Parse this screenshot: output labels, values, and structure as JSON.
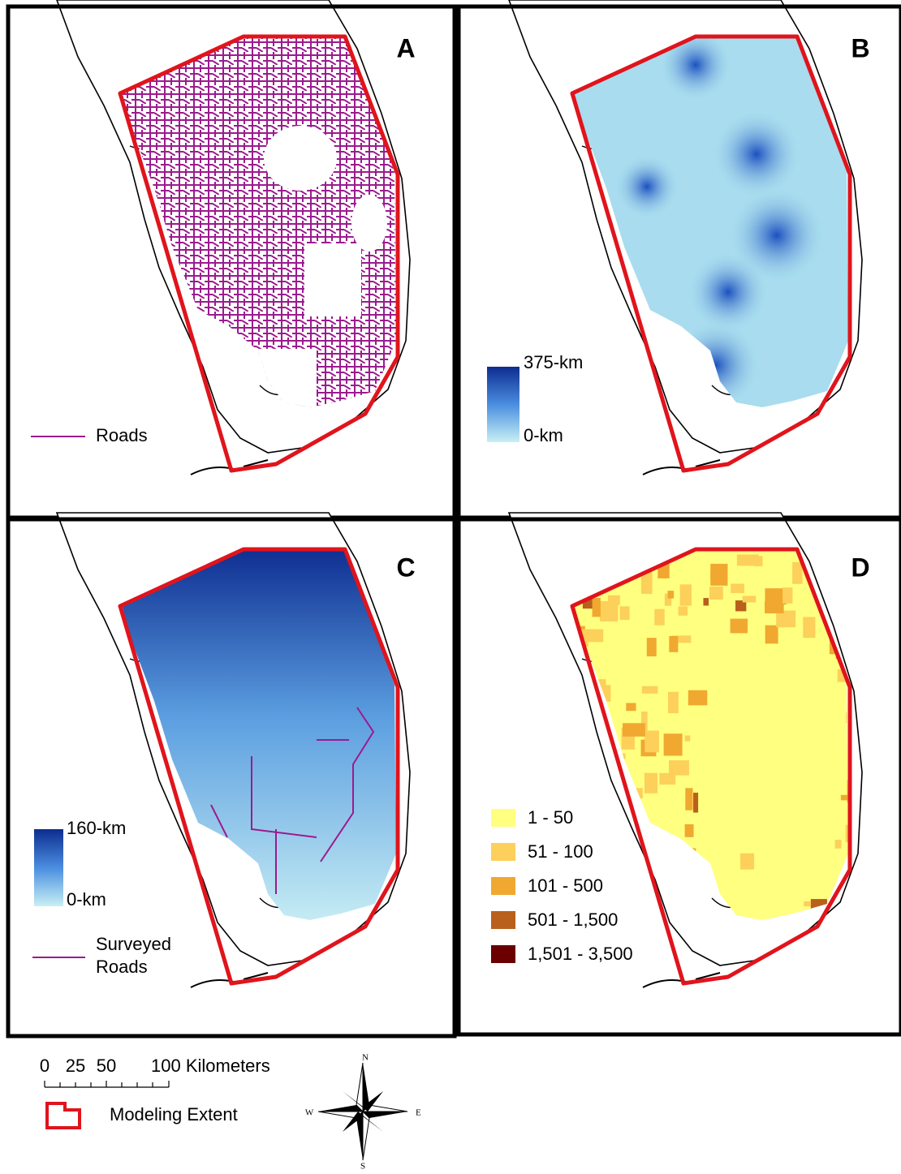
{
  "panels": [
    {
      "label": "A",
      "legend": {
        "line": "Roads"
      }
    },
    {
      "label": "B",
      "legend": {
        "max": "375-km",
        "min": "0-km"
      }
    },
    {
      "label": "C",
      "legend": {
        "max": "160-km",
        "min": "0-km",
        "line": [
          "Surveyed",
          "Roads"
        ]
      }
    },
    {
      "label": "D",
      "legend": {
        "classes": [
          {
            "label": "1 - 50",
            "color": "#ffff80"
          },
          {
            "label": "51 - 100",
            "color": "#fcd05a"
          },
          {
            "label": "101 - 500",
            "color": "#f0a830"
          },
          {
            "label": "501 - 1,500",
            "color": "#b8601c"
          },
          {
            "label": "1,501 - 3,500",
            "color": "#6b0000"
          }
        ]
      }
    }
  ],
  "scale_bar": {
    "labels": [
      "0",
      "25",
      "50",
      "100 Kilometers"
    ]
  },
  "compass": {
    "n": "N",
    "e": "E",
    "s": "S",
    "w": "W"
  },
  "extent_legend": "Modeling Extent"
}
